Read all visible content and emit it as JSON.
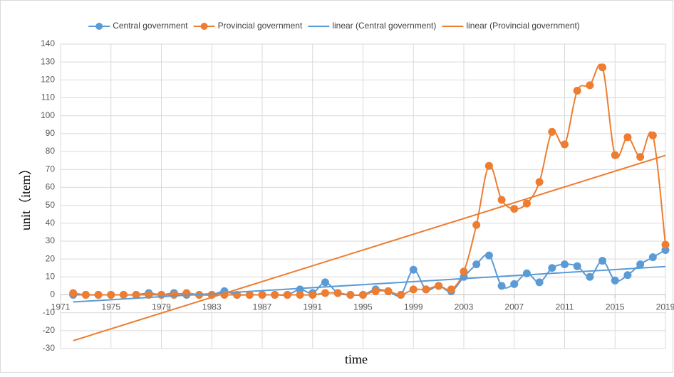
{
  "chart_data": {
    "type": "line",
    "x_label": "time",
    "y_label": "unit（item）",
    "x": [
      1972,
      1973,
      1974,
      1975,
      1976,
      1977,
      1978,
      1979,
      1980,
      1981,
      1982,
      1983,
      1984,
      1985,
      1986,
      1987,
      1988,
      1989,
      1990,
      1991,
      1992,
      1993,
      1994,
      1995,
      1996,
      1997,
      1998,
      1999,
      2000,
      2001,
      2002,
      2003,
      2004,
      2005,
      2006,
      2007,
      2008,
      2009,
      2010,
      2011,
      2012,
      2013,
      2014,
      2015,
      2016,
      2017,
      2018,
      2019
    ],
    "series": [
      {
        "name": "Central government",
        "color": "#5b9bd5",
        "trendline": {
          "name": "linear (Central government)",
          "type": "linear"
        },
        "values": [
          0,
          0,
          0,
          0,
          0,
          0,
          1,
          0,
          1,
          0,
          0,
          0,
          2,
          0,
          0,
          0,
          0,
          0,
          3,
          1,
          7,
          1,
          0,
          0,
          3,
          2,
          0,
          14,
          3,
          5,
          2,
          10,
          17,
          22,
          5,
          6,
          12,
          7,
          15,
          17,
          16,
          10,
          19,
          8,
          11,
          17,
          21,
          25
        ]
      },
      {
        "name": "Provincial government",
        "color": "#ed7d31",
        "trendline": {
          "name": "linear (Provincial government)",
          "type": "linear"
        },
        "values": [
          1,
          0,
          0,
          0,
          0,
          0,
          0,
          0,
          0,
          1,
          0,
          0,
          0,
          0,
          0,
          0,
          0,
          0,
          0,
          0,
          1,
          1,
          0,
          0,
          2,
          2,
          0,
          3,
          3,
          5,
          3,
          13,
          39,
          72,
          53,
          48,
          51,
          63,
          91,
          84,
          114,
          117,
          127,
          78,
          88,
          77,
          89,
          28
        ]
      }
    ],
    "xlim": [
      1971,
      2019
    ],
    "xticks": [
      1971,
      1975,
      1979,
      1983,
      1987,
      1991,
      1995,
      1999,
      2003,
      2007,
      2011,
      2015,
      2019
    ],
    "ylim": [
      -30,
      140
    ],
    "yticks": [
      -30,
      -20,
      -10,
      0,
      10,
      20,
      30,
      40,
      50,
      60,
      70,
      80,
      90,
      100,
      110,
      120,
      130,
      140
    ],
    "grid": true,
    "smooth": true,
    "legend": "top"
  }
}
